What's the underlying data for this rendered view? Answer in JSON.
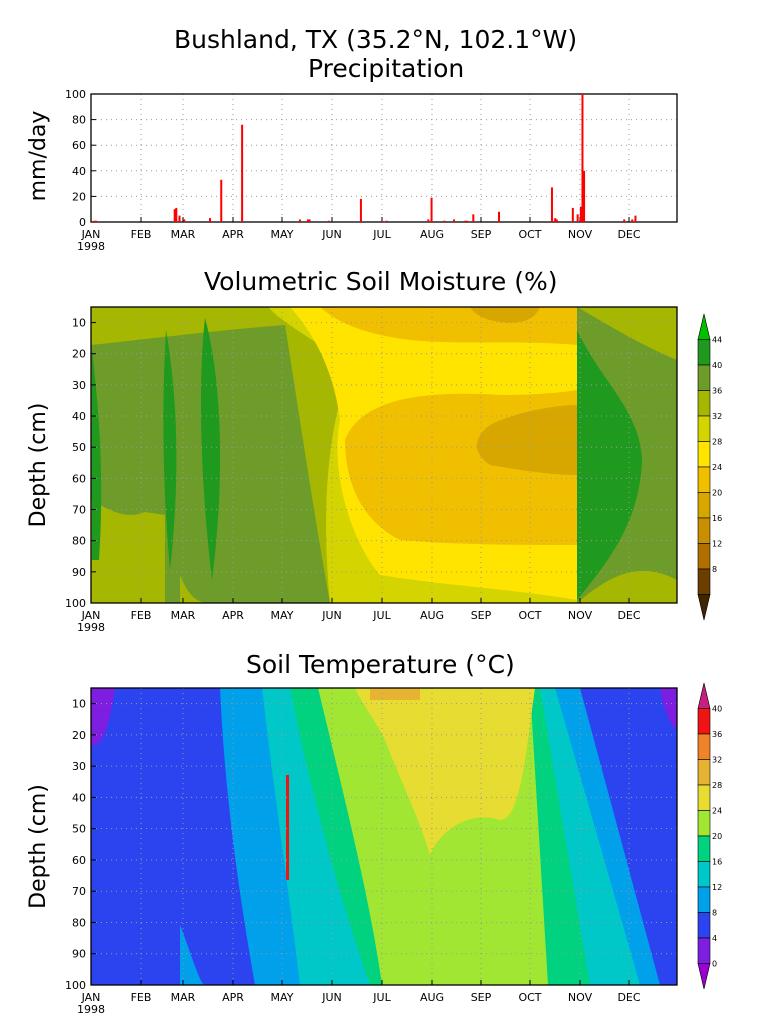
{
  "header": {
    "title": "Bushland, TX   (35.2°N, 102.1°W)",
    "subtitle": "Precipitation"
  },
  "chart_data": [
    {
      "type": "bar",
      "title": "Precipitation",
      "ylabel": "mm/day",
      "xlabel": "",
      "ylim": [
        0,
        100
      ],
      "yticks": [
        0,
        20,
        40,
        60,
        80,
        100
      ],
      "xticks": [
        "JAN",
        "FEB",
        "MAR",
        "APR",
        "MAY",
        "JUN",
        "JUL",
        "AUG",
        "SEP",
        "OCT",
        "NOV",
        "DEC"
      ],
      "year_label": "1998",
      "grid": true,
      "color": "#ff0000",
      "x": [
        2,
        3,
        52,
        53,
        55,
        58,
        74,
        81,
        94,
        130,
        135,
        136,
        148,
        168,
        181,
        184,
        210,
        212,
        220,
        226,
        233,
        234,
        238,
        254,
        287,
        289,
        290,
        300,
        303,
        305,
        306,
        307,
        332,
        337,
        339
      ],
      "values": [
        1,
        1,
        10,
        11,
        5,
        2,
        3,
        33,
        76,
        2,
        2,
        2,
        1,
        18,
        1,
        1,
        2,
        19,
        1,
        2,
        1,
        1,
        6,
        8,
        27,
        3,
        2,
        11,
        6,
        12,
        100,
        40,
        2,
        2,
        5
      ]
    },
    {
      "type": "heatmap",
      "title": "Volumetric Soil Moisture (%)",
      "ylabel": "Depth (cm)",
      "ylim": [
        100,
        5
      ],
      "yticks": [
        10,
        20,
        30,
        40,
        50,
        60,
        70,
        80,
        90,
        100
      ],
      "xticks": [
        "JAN",
        "FEB",
        "MAR",
        "APR",
        "MAY",
        "JUN",
        "JUL",
        "AUG",
        "SEP",
        "OCT",
        "NOV",
        "DEC"
      ],
      "year_label": "1998",
      "levels": [
        8,
        12,
        16,
        20,
        24,
        28,
        32,
        36,
        40,
        44
      ],
      "colorbar_labels": [
        "44",
        "40",
        "36",
        "32",
        "28",
        "24",
        "20",
        "16",
        "12",
        "8"
      ],
      "colors": [
        "#3f2600",
        "#6e3e00",
        "#b07000",
        "#c89000",
        "#d7a700",
        "#f0c000",
        "#ffe400",
        "#d4d400",
        "#a5b700",
        "#6d9c2a",
        "#1f9a1f",
        "#00c000"
      ]
    },
    {
      "type": "heatmap",
      "title": "Soil Temperature (°C)",
      "ylabel": "Depth (cm)",
      "ylim": [
        100,
        5
      ],
      "yticks": [
        10,
        20,
        30,
        40,
        50,
        60,
        70,
        80,
        90,
        100
      ],
      "xticks": [
        "JAN",
        "FEB",
        "MAR",
        "APR",
        "MAY",
        "JUN",
        "JUL",
        "AUG",
        "SEP",
        "OCT",
        "NOV",
        "DEC"
      ],
      "year_label": "1998",
      "levels": [
        0,
        4,
        8,
        12,
        16,
        20,
        24,
        28,
        32,
        36,
        40
      ],
      "colorbar_labels": [
        "40",
        "36",
        "32",
        "28",
        "24",
        "20",
        "16",
        "12",
        "8",
        "4",
        "0"
      ],
      "colors": [
        "#9a00d0",
        "#7d1ee0",
        "#2b44f0",
        "#00a0ea",
        "#00c8c8",
        "#00d280",
        "#a0e632",
        "#e6dc32",
        "#e6b432",
        "#f08228",
        "#f01414",
        "#c81e82"
      ]
    }
  ]
}
